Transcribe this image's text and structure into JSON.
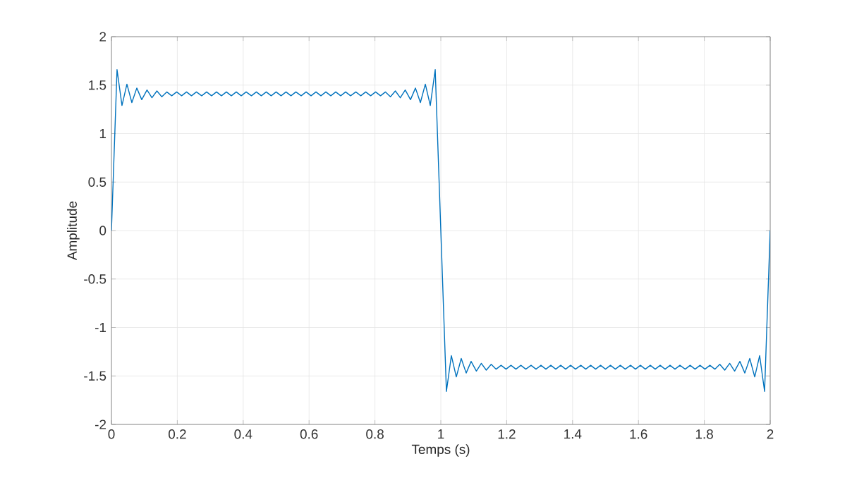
{
  "chart_data": {
    "type": "line",
    "xlabel": "Temps (s)",
    "ylabel": "Amplitude",
    "xlim": [
      0,
      2
    ],
    "ylim": [
      -2,
      2
    ],
    "xticks": [
      0,
      0.2,
      0.4,
      0.6,
      0.8,
      1,
      1.2,
      1.4,
      1.6,
      1.8,
      2
    ],
    "yticks": [
      -2,
      -1.5,
      -1,
      -0.5,
      0,
      0.5,
      1,
      1.5,
      2
    ],
    "grid": true,
    "series": [
      {
        "color": "#0072bd",
        "x": [
          0,
          0.017,
          0.032,
          0.047,
          0.062,
          0.077,
          0.092,
          0.108,
          0.123,
          0.138,
          0.153,
          0.168,
          0.183,
          0.198,
          0.213,
          0.228,
          0.243,
          0.258,
          0.274,
          0.289,
          0.304,
          0.319,
          0.334,
          0.349,
          0.364,
          0.379,
          0.394,
          0.409,
          0.425,
          0.44,
          0.455,
          0.47,
          0.485,
          0.5,
          0.515,
          0.53,
          0.545,
          0.56,
          0.576,
          0.591,
          0.606,
          0.621,
          0.636,
          0.651,
          0.666,
          0.681,
          0.696,
          0.711,
          0.726,
          0.742,
          0.757,
          0.772,
          0.787,
          0.802,
          0.817,
          0.832,
          0.847,
          0.862,
          0.877,
          0.892,
          0.908,
          0.923,
          0.938,
          0.953,
          0.968,
          0.983,
          1.0,
          1.017,
          1.032,
          1.047,
          1.062,
          1.077,
          1.092,
          1.108,
          1.123,
          1.138,
          1.153,
          1.168,
          1.183,
          1.198,
          1.213,
          1.228,
          1.243,
          1.258,
          1.274,
          1.289,
          1.304,
          1.319,
          1.334,
          1.349,
          1.364,
          1.379,
          1.394,
          1.409,
          1.425,
          1.44,
          1.455,
          1.47,
          1.485,
          1.5,
          1.515,
          1.53,
          1.545,
          1.56,
          1.576,
          1.591,
          1.606,
          1.621,
          1.636,
          1.651,
          1.666,
          1.681,
          1.696,
          1.711,
          1.726,
          1.742,
          1.757,
          1.772,
          1.787,
          1.802,
          1.817,
          1.832,
          1.847,
          1.862,
          1.877,
          1.892,
          1.908,
          1.923,
          1.938,
          1.953,
          1.968,
          1.983,
          2.0
        ],
        "values": [
          0,
          1.66,
          1.29,
          1.51,
          1.32,
          1.47,
          1.35,
          1.45,
          1.37,
          1.44,
          1.38,
          1.43,
          1.39,
          1.43,
          1.39,
          1.43,
          1.39,
          1.43,
          1.39,
          1.43,
          1.39,
          1.43,
          1.39,
          1.43,
          1.39,
          1.43,
          1.39,
          1.43,
          1.39,
          1.43,
          1.39,
          1.43,
          1.39,
          1.43,
          1.39,
          1.43,
          1.39,
          1.43,
          1.39,
          1.43,
          1.39,
          1.43,
          1.39,
          1.43,
          1.39,
          1.43,
          1.39,
          1.43,
          1.39,
          1.43,
          1.39,
          1.43,
          1.39,
          1.43,
          1.39,
          1.43,
          1.38,
          1.44,
          1.37,
          1.45,
          1.35,
          1.47,
          1.32,
          1.51,
          1.29,
          1.66,
          0,
          -1.66,
          -1.29,
          -1.51,
          -1.32,
          -1.47,
          -1.35,
          -1.45,
          -1.37,
          -1.44,
          -1.38,
          -1.43,
          -1.39,
          -1.43,
          -1.39,
          -1.43,
          -1.39,
          -1.43,
          -1.39,
          -1.43,
          -1.39,
          -1.43,
          -1.39,
          -1.43,
          -1.39,
          -1.43,
          -1.39,
          -1.43,
          -1.39,
          -1.43,
          -1.39,
          -1.43,
          -1.39,
          -1.43,
          -1.39,
          -1.43,
          -1.39,
          -1.43,
          -1.39,
          -1.43,
          -1.39,
          -1.43,
          -1.39,
          -1.43,
          -1.39,
          -1.43,
          -1.39,
          -1.43,
          -1.39,
          -1.43,
          -1.39,
          -1.43,
          -1.39,
          -1.43,
          -1.39,
          -1.43,
          -1.38,
          -1.44,
          -1.37,
          -1.45,
          -1.35,
          -1.47,
          -1.32,
          -1.51,
          -1.29,
          -1.66,
          0
        ]
      }
    ]
  }
}
